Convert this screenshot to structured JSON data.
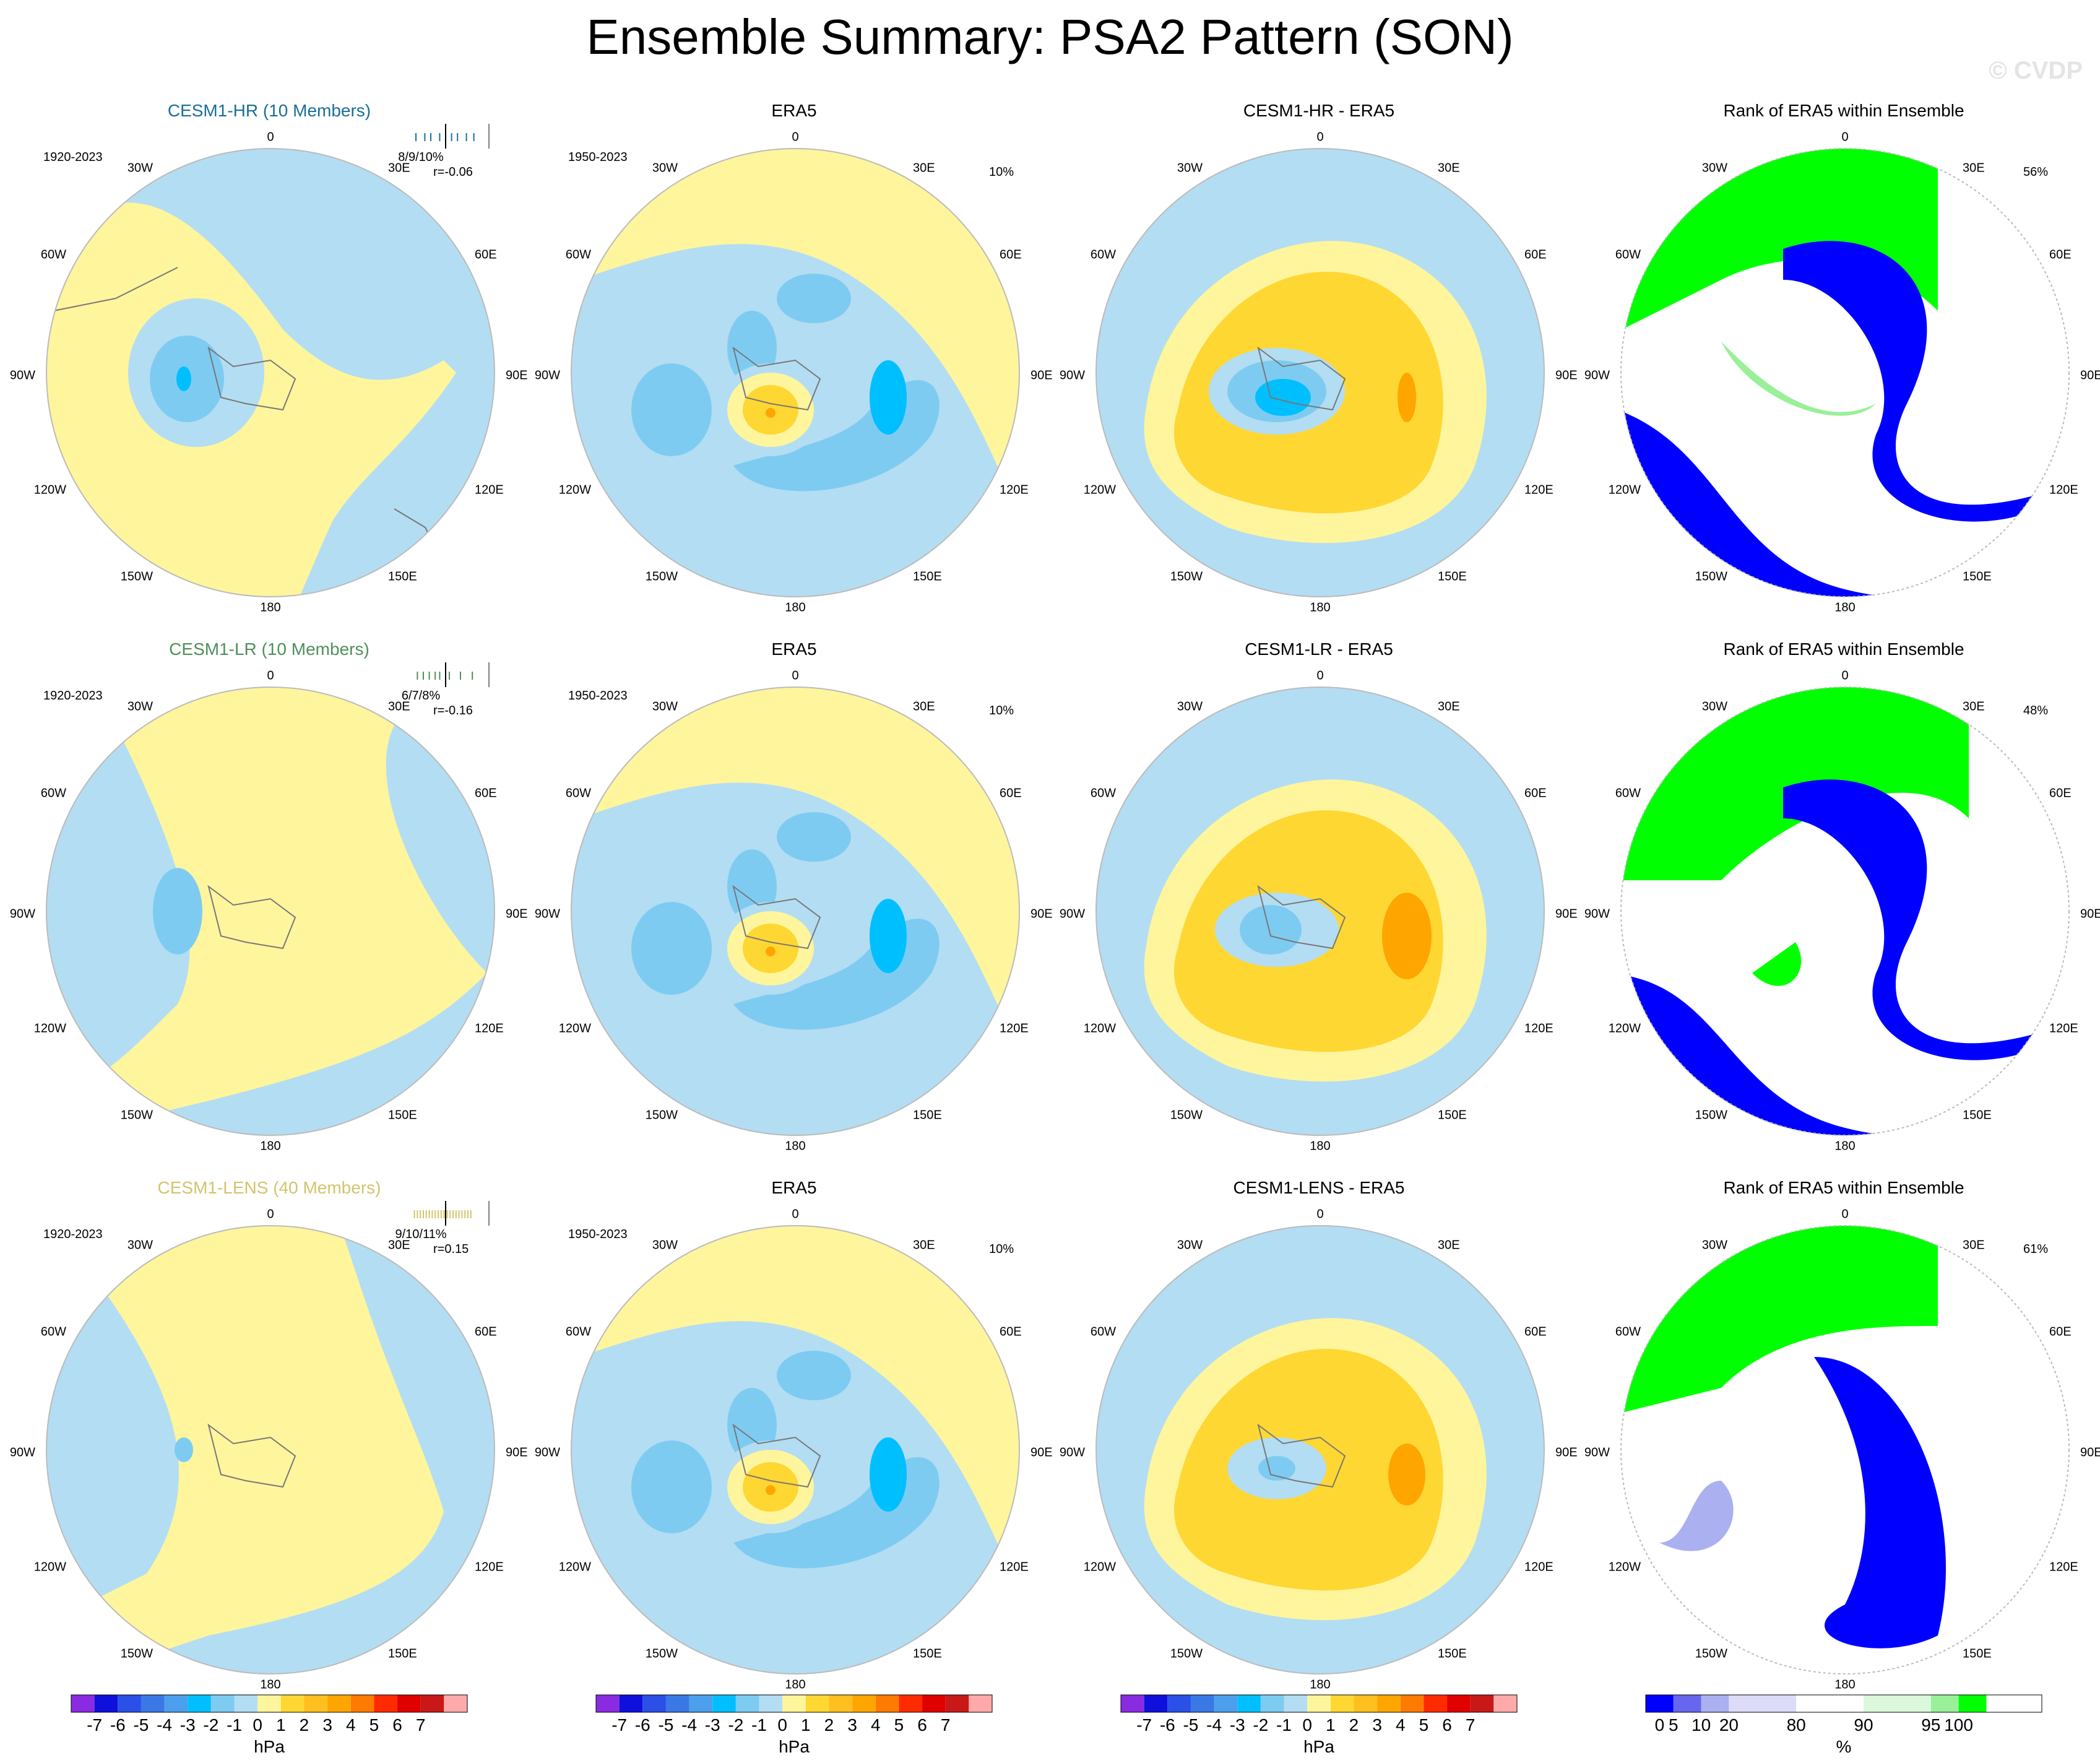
{
  "title": "Ensemble Summary: PSA2 Pattern (SON)",
  "watermark": "© CVDP",
  "colors": {
    "model_hr": "#1a6e9a",
    "model_lr": "#4f8f5c",
    "model_lens": "#d3c46c",
    "ocean_blue": "#b3ddf2",
    "land_yellow": "#fff59d",
    "map_border": "#bbbbbb",
    "coast": "#777777"
  },
  "map_labels": {
    "lon_top": "0",
    "lon_30w": "30W",
    "lon_30e": "30E",
    "lon_60w": "60W",
    "lon_60e": "60E",
    "lon_90w": "90W",
    "lon_90e": "90E",
    "lon_120w": "120W",
    "lon_120e": "120E",
    "lon_150w": "150W",
    "lon_150e": "150E",
    "lon_bottom": "180"
  },
  "rows": [
    {
      "model": {
        "title": "CESM1-HR (10 Members)",
        "period": "1920-2023",
        "stats": "8/9/10%",
        "corr": "r=-0.06",
        "ticks": [
          0.1,
          0.22,
          0.3,
          0.42,
          0.5,
          0.58,
          0.66,
          0.78,
          0.88
        ]
      },
      "obs": {
        "title": "ERA5",
        "period": "1950-2023",
        "pct": "10%"
      },
      "diff": {
        "title": "CESM1-HR - ERA5"
      },
      "rank": {
        "title": "Rank of ERA5 within Ensemble",
        "pct": "56%"
      }
    },
    {
      "model": {
        "title": "CESM1-LR (10 Members)",
        "period": "1920-2023",
        "stats": "6/7/8%",
        "corr": "r=-0.16",
        "ticks": [
          0.12,
          0.2,
          0.28,
          0.36,
          0.42,
          0.55,
          0.7,
          0.86
        ]
      },
      "obs": {
        "title": "ERA5",
        "period": "1950-2023",
        "pct": "10%"
      },
      "diff": {
        "title": "CESM1-LR - ERA5"
      },
      "rank": {
        "title": "Rank of ERA5 within Ensemble",
        "pct": "48%"
      }
    },
    {
      "model": {
        "title": "CESM1-LENS (40 Members)",
        "period": "1920-2023",
        "stats": "9/10/11%",
        "corr": "r=0.15",
        "ticks": [
          0.08,
          0.12,
          0.16,
          0.2,
          0.24,
          0.28,
          0.32,
          0.36,
          0.4,
          0.44,
          0.48,
          0.52,
          0.56,
          0.6,
          0.64,
          0.68,
          0.72,
          0.76,
          0.8,
          0.84
        ]
      },
      "obs": {
        "title": "ERA5",
        "period": "1950-2023",
        "pct": "10%"
      },
      "diff": {
        "title": "CESM1-LENS - ERA5"
      },
      "rank": {
        "title": "Rank of ERA5 within Ensemble",
        "pct": "61%"
      }
    }
  ],
  "chart_data": {
    "type": "heatmap",
    "projection": "south polar stereographic",
    "colorbars": [
      {
        "unit": "hPa",
        "tick_labels": [
          "-7",
          "-6",
          "-5",
          "-4",
          "-3",
          "-2",
          "-1",
          "0",
          "1",
          "2",
          "3",
          "4",
          "5",
          "6",
          "7"
        ],
        "colors": [
          "#8a2be2",
          "#1010dd",
          "#2a50e8",
          "#3a78e6",
          "#4c9fec",
          "#00bfff",
          "#7ecbf2",
          "#b3ddf2",
          "#fff59d",
          "#ffd733",
          "#ffbf1f",
          "#ffa500",
          "#ff7a00",
          "#ff2a00",
          "#e00000",
          "#c81818",
          "#ffaaaa"
        ]
      },
      {
        "unit": "%",
        "tick_labels": [
          "0",
          "5",
          "10",
          "20",
          "80",
          "90",
          "95",
          "100"
        ],
        "colors": [
          "#0000ff",
          "#6666ee",
          "#aab0f0",
          "#dcdcf8",
          "#ffffff",
          "#dcf8dc",
          "#99f099",
          "#00ff00"
        ]
      }
    ]
  }
}
